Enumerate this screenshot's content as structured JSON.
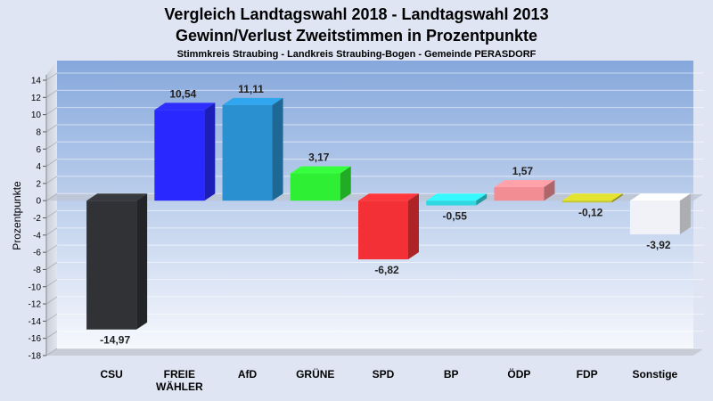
{
  "chart_data": {
    "type": "bar",
    "title": "Vergleich Landtagswahl 2018 - Landtagswahl 2013",
    "title2": "Gewinn/Verlust Zweitstimmen in Prozentpunkte",
    "subtitle": "Stimmkreis Straubing - Landkreis Straubing-Bogen - Gemeinde PERASDORF",
    "ylabel": "Prozentpunkte",
    "ylim": [
      -18,
      14
    ],
    "yticks": [
      14,
      12,
      10,
      8,
      6,
      4,
      2,
      0,
      -2,
      -4,
      -6,
      -8,
      -10,
      -12,
      -14,
      -16,
      -18
    ],
    "grid": true,
    "categories": [
      "CSU",
      "FREIE WÄHLER",
      "AfD",
      "GRÜNE",
      "SPD",
      "BP",
      "ÖDP",
      "FDP",
      "Sonstige"
    ],
    "category_lines": [
      [
        "CSU"
      ],
      [
        "FREIE",
        "WÄHLER"
      ],
      [
        "AfD"
      ],
      [
        "GRÜNE"
      ],
      [
        "SPD"
      ],
      [
        "BP"
      ],
      [
        "ÖDP"
      ],
      [
        "FDP"
      ],
      [
        "Sonstige"
      ]
    ],
    "values": [
      -14.97,
      10.54,
      11.11,
      3.17,
      -6.82,
      -0.55,
      1.57,
      -0.12,
      -3.92
    ],
    "value_labels": [
      "-14,97",
      "10,54",
      "11,11",
      "3,17",
      "-6,82",
      "-0,55",
      "1,57",
      "-0,12",
      "-3,92"
    ],
    "colors": [
      "#303236",
      "#2828ff",
      "#2a90cf",
      "#2fef35",
      "#f23035",
      "#2fd8e0",
      "#f28d94",
      "#c7c62a",
      "#f0f2f7"
    ]
  }
}
